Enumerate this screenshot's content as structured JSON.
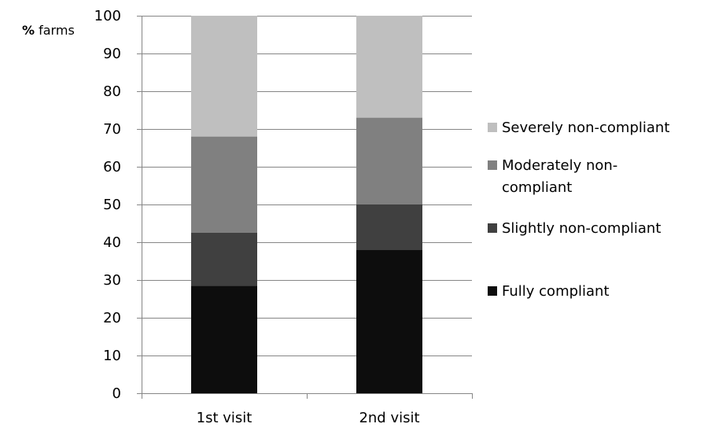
{
  "chart_data": {
    "type": "bar",
    "stacked": true,
    "ylabel_bold": "%",
    "ylabel_rest": " farms",
    "categories": [
      "1st visit",
      "2nd visit"
    ],
    "ylim": [
      0,
      100
    ],
    "yticks": [
      0,
      10,
      20,
      30,
      40,
      50,
      60,
      70,
      80,
      90,
      100
    ],
    "grid": true,
    "legend_position": "right",
    "series": [
      {
        "name": "Fully compliant",
        "legend_lines": [
          "Fully compliant"
        ],
        "color": "#0d0d0d",
        "values": [
          28.5,
          38
        ]
      },
      {
        "name": "Slightly non-compliant",
        "legend_lines": [
          "Slightly non-compliant"
        ],
        "color": "#404040",
        "values": [
          14,
          12
        ]
      },
      {
        "name": "Moderately non-compliant",
        "legend_lines": [
          "Moderately non-",
          "compliant"
        ],
        "color": "#808080",
        "values": [
          25.5,
          23
        ]
      },
      {
        "name": "Severely non-compliant",
        "legend_lines": [
          "Severely non-compliant"
        ],
        "color": "#bfbfbf",
        "values": [
          32,
          27
        ]
      }
    ]
  }
}
